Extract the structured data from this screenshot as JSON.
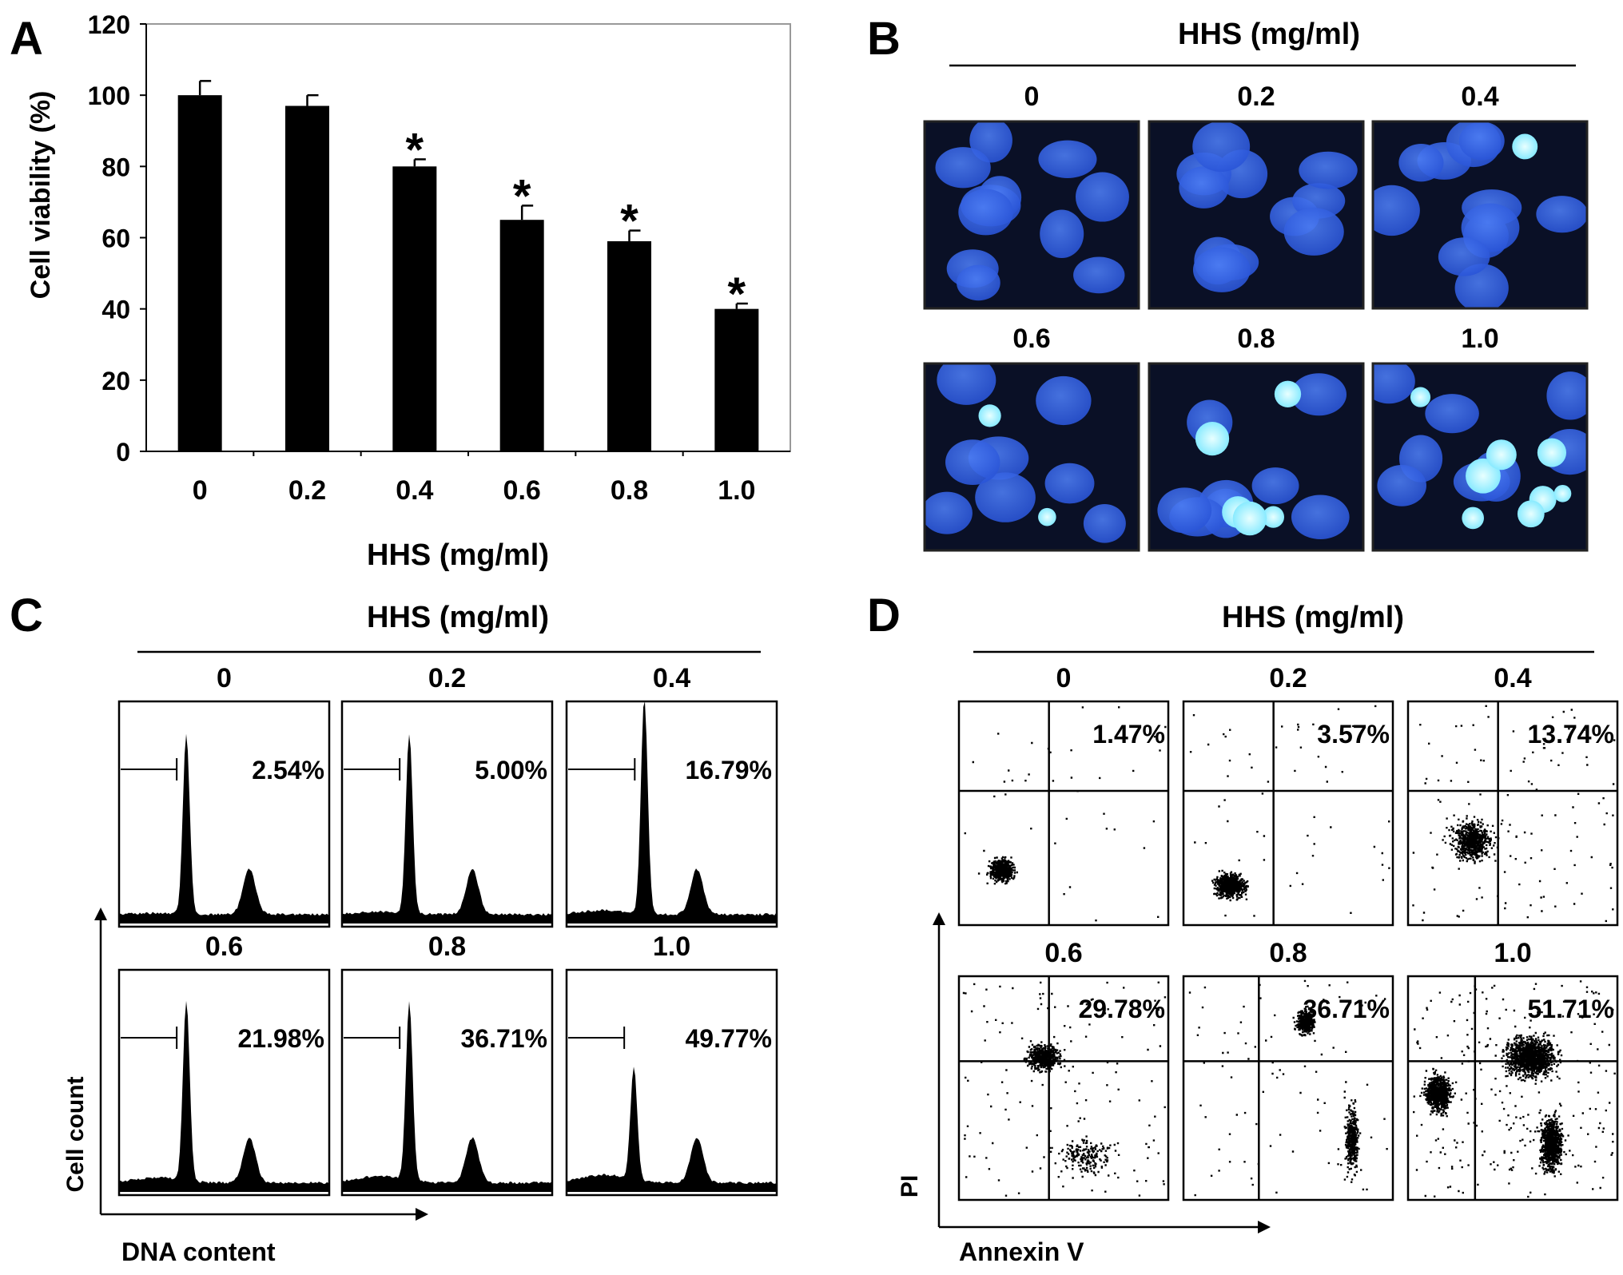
{
  "panel_letters": [
    "A",
    "B",
    "C",
    "D"
  ],
  "chart_data": {
    "type": "bar",
    "categories": [
      "0",
      "0.2",
      "0.4",
      "0.6",
      "0.8",
      "1.0"
    ],
    "values": [
      100,
      97,
      80,
      65,
      59,
      40
    ],
    "errors": [
      4,
      3,
      2,
      4,
      3,
      1.5
    ],
    "significant": [
      false,
      false,
      true,
      true,
      true,
      true
    ],
    "significance_mark": "*",
    "xlabel": "HHS (mg/ml)",
    "ylabel": "Cell viability (%)",
    "ylim": [
      0,
      120
    ],
    "yticks": [
      0,
      20,
      40,
      60,
      80,
      100,
      120
    ],
    "bar_color": "#000000",
    "grid": false
  },
  "panel_b": {
    "title": "HHS (mg/ml)",
    "images": [
      {
        "label": "0"
      },
      {
        "label": "0.2"
      },
      {
        "label": "0.4"
      },
      {
        "label": "0.6"
      },
      {
        "label": "0.8"
      },
      {
        "label": "1.0"
      }
    ],
    "stain_colors": {
      "background": "#0a1026",
      "nucleus": "#2a55d8",
      "apoptotic": "#7fe8ff"
    }
  },
  "panel_c": {
    "title": "HHS (mg/ml)",
    "xlabel": "DNA content",
    "ylabel": "Cell count",
    "histograms": [
      {
        "label": "0",
        "sub_g1": "2.54%"
      },
      {
        "label": "0.2",
        "sub_g1": "5.00%"
      },
      {
        "label": "0.4",
        "sub_g1": "16.79%"
      },
      {
        "label": "0.6",
        "sub_g1": "21.98%"
      },
      {
        "label": "0.8",
        "sub_g1": "36.71%"
      },
      {
        "label": "1.0",
        "sub_g1": "49.77%"
      }
    ]
  },
  "panel_d": {
    "title": "HHS (mg/ml)",
    "xlabel": "Annexin V",
    "ylabel": "PI",
    "plots": [
      {
        "label": "0",
        "percent": "1.47%"
      },
      {
        "label": "0.2",
        "percent": "3.57%"
      },
      {
        "label": "0.4",
        "percent": "13.74%"
      },
      {
        "label": "0.6",
        "percent": "29.78%"
      },
      {
        "label": "0.8",
        "percent": "36.71%"
      },
      {
        "label": "1.0",
        "percent": "51.71%"
      }
    ]
  }
}
